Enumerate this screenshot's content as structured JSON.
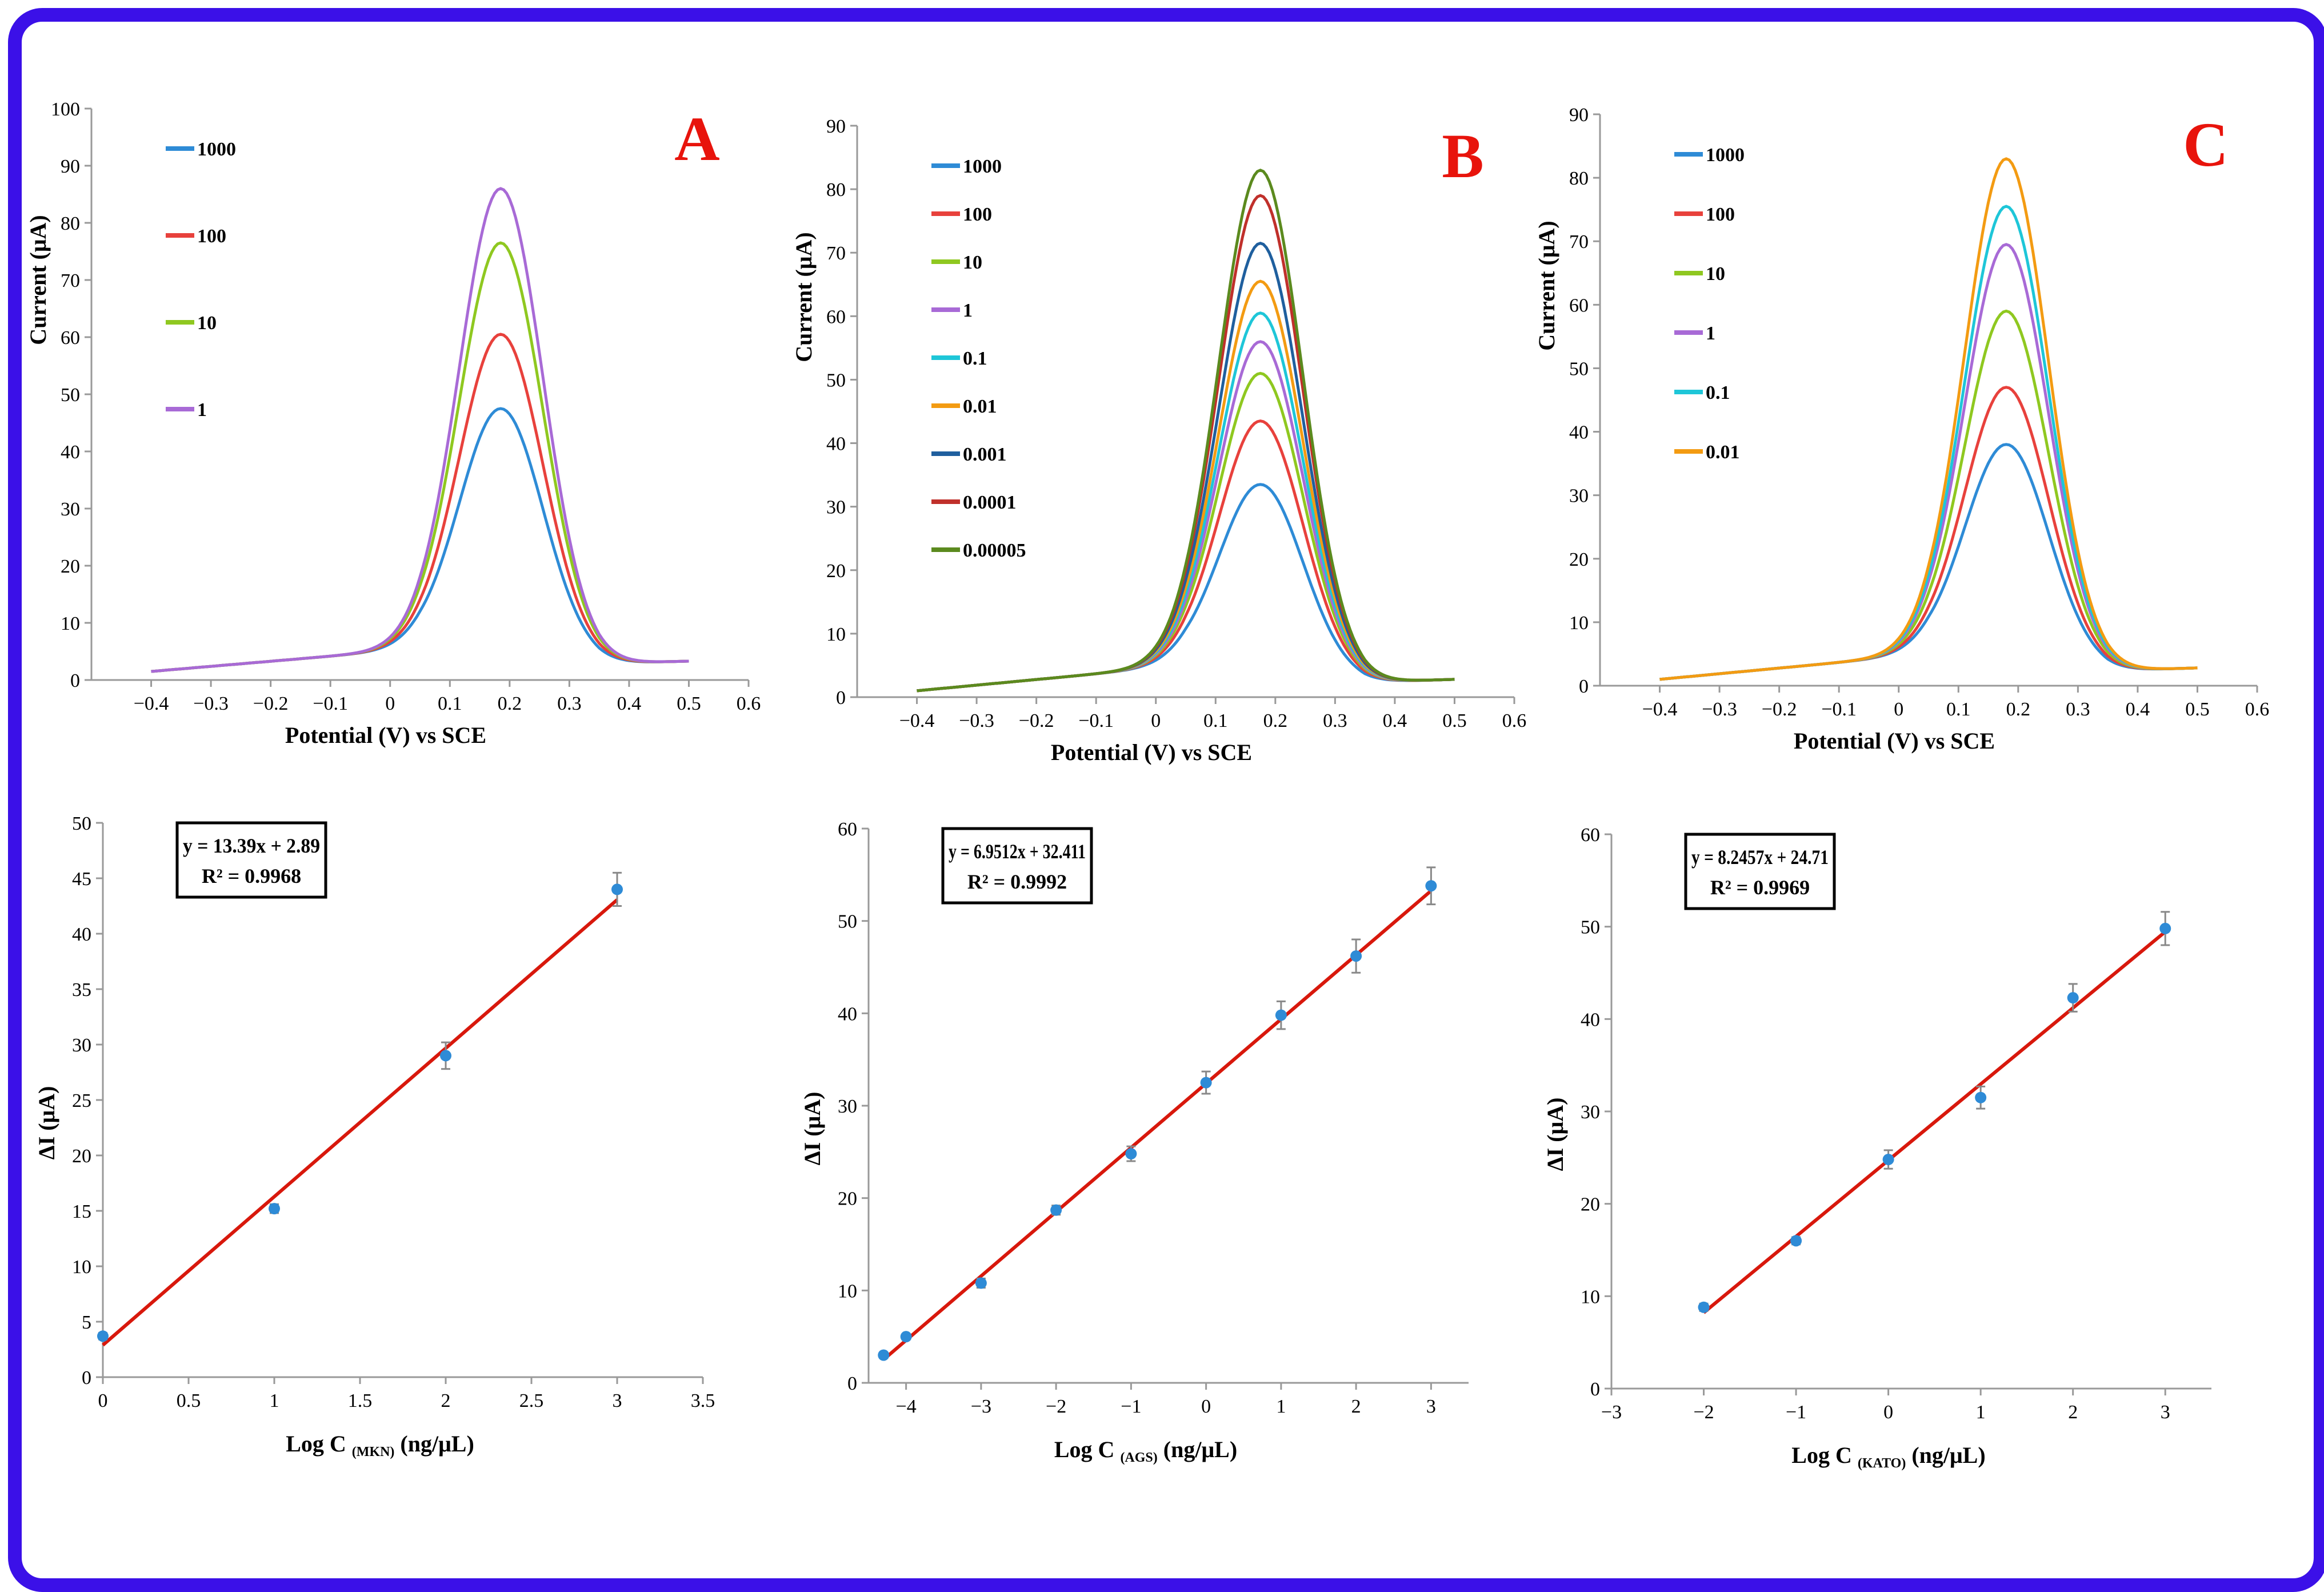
{
  "frame": {
    "border_color": "#3b10e8"
  },
  "chart_data": [
    {
      "id": "A-top",
      "panel_label": "A",
      "type": "line",
      "xlabel": "Potential (V) vs SCE",
      "ylabel": "Current (μA)",
      "xlim": [
        -0.5,
        0.6
      ],
      "ylim": [
        0,
        100
      ],
      "xticks": [
        "-0.4",
        "-0.3",
        "-0.2",
        "-0.1",
        "0",
        "0.1",
        "0.2",
        "0.3",
        "0.4",
        "0.5",
        "0.6"
      ],
      "yticks": [
        "0",
        "10",
        "20",
        "30",
        "40",
        "50",
        "60",
        "70",
        "80",
        "90",
        "100"
      ],
      "peak_x": 0.185,
      "x_start": -0.4,
      "x_end": 0.5,
      "series": [
        {
          "name": "1000",
          "color": "#2e8bd6",
          "peak": 47.5,
          "base": 1.5
        },
        {
          "name": "100",
          "color": "#e8413c",
          "peak": 60.5,
          "base": 1.5
        },
        {
          "name": "10",
          "color": "#8fc820",
          "peak": 76.5,
          "base": 1.5
        },
        {
          "name": "1",
          "color": "#a86ad6",
          "peak": 86,
          "base": 1.5
        }
      ]
    },
    {
      "id": "B-top",
      "panel_label": "B",
      "type": "line",
      "xlabel": "Potential (V) vs SCE",
      "ylabel": "Current (μA)",
      "xlim": [
        -0.5,
        0.6
      ],
      "ylim": [
        0,
        90
      ],
      "xticks": [
        "-0.4",
        "-0.3",
        "-0.2",
        "-0.1",
        "0",
        "0.1",
        "0.2",
        "0.3",
        "0.4",
        "0.5",
        "0.6"
      ],
      "yticks": [
        "0",
        "10",
        "20",
        "30",
        "40",
        "50",
        "60",
        "70",
        "80",
        "90"
      ],
      "peak_x": 0.175,
      "x_start": -0.4,
      "x_end": 0.5,
      "series": [
        {
          "name": "1000",
          "color": "#2e8bd6",
          "peak": 33.5,
          "base": 1
        },
        {
          "name": "100",
          "color": "#e8413c",
          "peak": 43.5,
          "base": 1
        },
        {
          "name": "10",
          "color": "#8fc820",
          "peak": 51,
          "base": 1
        },
        {
          "name": "1",
          "color": "#a86ad6",
          "peak": 56,
          "base": 1
        },
        {
          "name": "0.1",
          "color": "#1ec6d8",
          "peak": 60.5,
          "base": 1
        },
        {
          "name": "0.01",
          "color": "#f39b12",
          "peak": 65.5,
          "base": 1
        },
        {
          "name": "0.001",
          "color": "#1f5f9e",
          "peak": 71.5,
          "base": 1
        },
        {
          "name": "0.0001",
          "color": "#c0302b",
          "peak": 79,
          "base": 1
        },
        {
          "name": "0.00005",
          "color": "#5b8a1e",
          "peak": 83,
          "base": 1
        }
      ]
    },
    {
      "id": "C-top",
      "panel_label": "C",
      "type": "line",
      "xlabel": "Potential (V) vs SCE",
      "ylabel": "Current (μA)",
      "xlim": [
        -0.5,
        0.6
      ],
      "ylim": [
        0,
        90
      ],
      "xticks": [
        "-0.4",
        "-0.3",
        "-0.2",
        "-0.1",
        "0",
        "0.1",
        "0.2",
        "0.3",
        "0.4",
        "0.5",
        "0.6"
      ],
      "yticks": [
        "0",
        "10",
        "20",
        "30",
        "40",
        "50",
        "60",
        "70",
        "80",
        "90"
      ],
      "peak_x": 0.18,
      "x_start": -0.4,
      "x_end": 0.5,
      "series": [
        {
          "name": "1000",
          "color": "#2e8bd6",
          "peak": 38,
          "base": 1
        },
        {
          "name": "100",
          "color": "#e8413c",
          "peak": 47,
          "base": 1
        },
        {
          "name": "10",
          "color": "#8fc820",
          "peak": 59,
          "base": 1
        },
        {
          "name": "1",
          "color": "#a86ad6",
          "peak": 69.5,
          "base": 1
        },
        {
          "name": "0.1",
          "color": "#1ec6d8",
          "peak": 75.5,
          "base": 1
        },
        {
          "name": "0.01",
          "color": "#f39b12",
          "peak": 83,
          "base": 1
        }
      ]
    },
    {
      "id": "A-bottom",
      "type": "scatter",
      "xlabel": "Log C",
      "xlabel_sub": "(MKN)",
      "xlabel_unit": "(ng/μL)",
      "ylabel": "ΔI (μA)",
      "xlim": [
        0,
        3.5
      ],
      "ylim": [
        0,
        50
      ],
      "xticks": [
        "0",
        "0.5",
        "1",
        "1.5",
        "2",
        "2.5",
        "3",
        "3.5"
      ],
      "yticks": [
        "0",
        "5",
        "10",
        "15",
        "20",
        "25",
        "30",
        "35",
        "40",
        "45",
        "50"
      ],
      "equation": "y = 13.39x + 2.89",
      "r2": "R² = 0.9968",
      "slope": 13.39,
      "intercept": 2.89,
      "fit_x": [
        0,
        3
      ],
      "x": [
        0,
        1,
        2,
        3
      ],
      "y": [
        3.7,
        15.2,
        29.0,
        44.0
      ],
      "err": [
        0.3,
        0.4,
        1.2,
        1.5
      ]
    },
    {
      "id": "B-bottom",
      "type": "scatter",
      "xlabel": "Log C",
      "xlabel_sub": "(AGS)",
      "xlabel_unit": "(ng/μL)",
      "ylabel": "ΔI (μA)",
      "xlim": [
        -4.5,
        3.5
      ],
      "ylim": [
        0,
        60
      ],
      "xticks": [
        "-4",
        "-3",
        "-2",
        "-1",
        "0",
        "1",
        "2",
        "3"
      ],
      "yticks": [
        "0",
        "10",
        "20",
        "30",
        "40",
        "50",
        "60"
      ],
      "equation": "y = 6.9512x + 32.411",
      "r2": "R² = 0.9992",
      "slope": 6.9512,
      "intercept": 32.411,
      "fit_x": [
        -4.3,
        3
      ],
      "x": [
        -4.3,
        -4,
        -3,
        -2,
        -1,
        0,
        1,
        2,
        3
      ],
      "y": [
        3.0,
        5.0,
        10.8,
        18.7,
        24.8,
        32.5,
        39.8,
        46.2,
        53.8
      ],
      "err": [
        0.3,
        0.3,
        0.5,
        0.5,
        0.8,
        1.2,
        1.5,
        1.8,
        2.0
      ]
    },
    {
      "id": "C-bottom",
      "type": "scatter",
      "xlabel": "Log C",
      "xlabel_sub": "(KATO)",
      "xlabel_unit": "(ng/μL)",
      "ylabel": "ΔI (μA)",
      "xlim": [
        -3,
        3.5
      ],
      "ylim": [
        0,
        60
      ],
      "xticks": [
        "-3",
        "-2",
        "-1",
        "0",
        "1",
        "2",
        "3"
      ],
      "yticks": [
        "0",
        "10",
        "20",
        "30",
        "40",
        "50",
        "60"
      ],
      "equation": "y = 8.2457x + 24.71",
      "r2": "R² = 0.9969",
      "slope": 8.2457,
      "intercept": 24.71,
      "fit_x": [
        -2,
        3
      ],
      "x": [
        -2,
        -1,
        0,
        1,
        2,
        3
      ],
      "y": [
        8.8,
        16.0,
        24.8,
        31.5,
        42.3,
        49.8
      ],
      "err": [
        0.4,
        0.4,
        1.0,
        1.2,
        1.5,
        1.8
      ]
    }
  ]
}
